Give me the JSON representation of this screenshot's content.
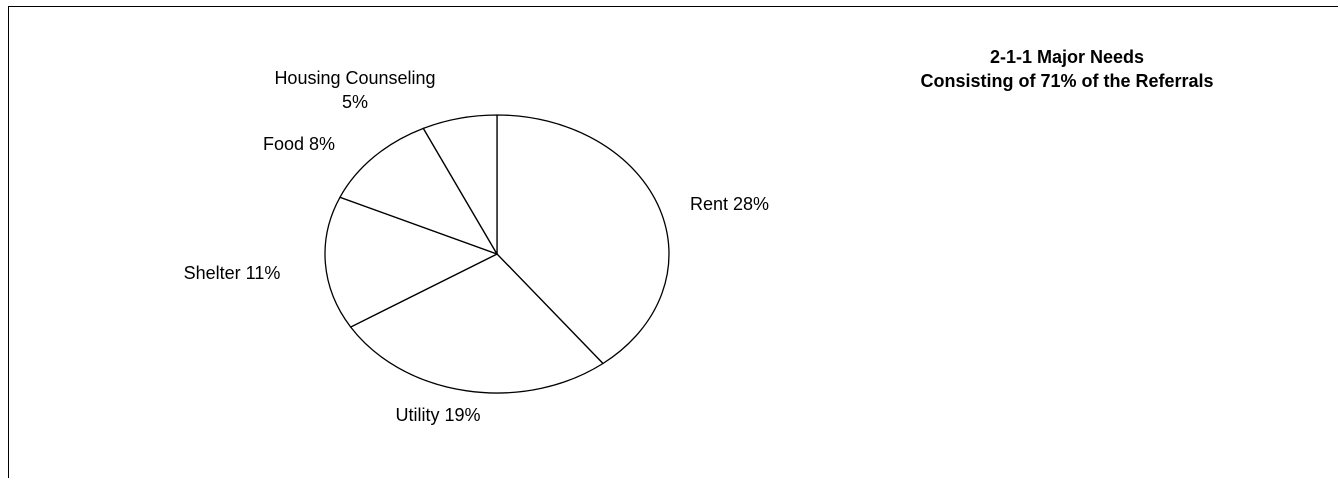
{
  "chart_data": {
    "type": "pie",
    "title": "2-1-1 Major Needs",
    "subtitle": "Consisting of 71% of the Referrals",
    "categories": [
      "Rent",
      "Utility",
      "Shelter",
      "Food",
      "Housing Counseling"
    ],
    "values": [
      28,
      19,
      11,
      8,
      5
    ],
    "labels": [
      "Rent 28%",
      "Utility 19%",
      "Shelter 11%",
      "Food 8%",
      "Housing Counseling"
    ],
    "extra_label": "5%",
    "slice_fill": "#ffffff",
    "stroke_color": "#000000",
    "start_angle": "12 o'clock",
    "direction": "clockwise",
    "legend": "none"
  }
}
